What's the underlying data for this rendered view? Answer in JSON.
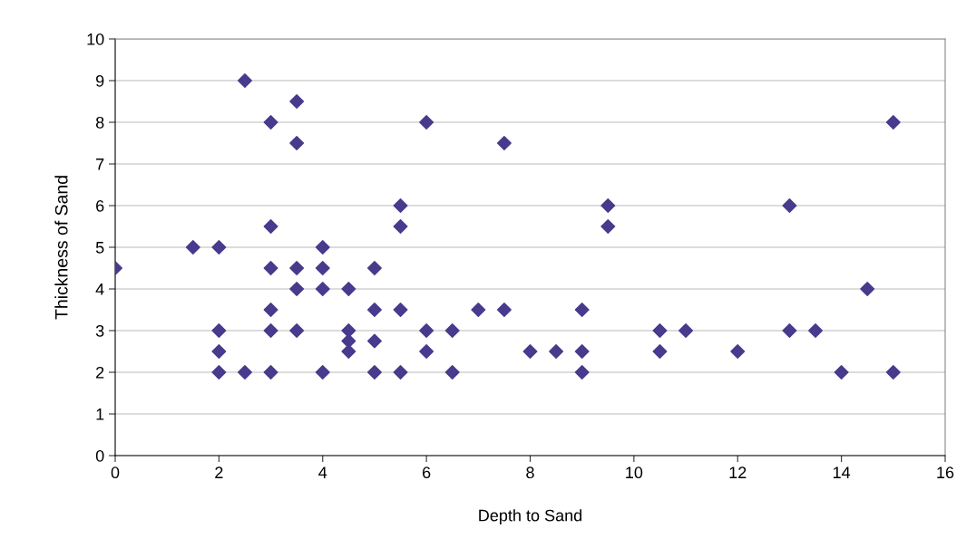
{
  "chart_data": {
    "type": "scatter",
    "xlabel": "Depth to Sand",
    "ylabel": "Thickness of Sand",
    "x": [
      0,
      1.5,
      2,
      2,
      2,
      2,
      2.5,
      2.5,
      3,
      3,
      3,
      3,
      3,
      3,
      3.5,
      3.5,
      3.5,
      3.5,
      3.5,
      4,
      4,
      4,
      4,
      4.5,
      4.5,
      4.5,
      4.5,
      5,
      5,
      5,
      5,
      5.5,
      5.5,
      5.5,
      5.5,
      6,
      6,
      6,
      6.5,
      6.5,
      7,
      7.5,
      7.5,
      8,
      8.5,
      9,
      9,
      9,
      9.5,
      9.5,
      10.5,
      10.5,
      11,
      12,
      13,
      13,
      13.5,
      14,
      14.5,
      15,
      15
    ],
    "series": [
      {
        "color": "#483a8c",
        "values": [
          4.5,
          5,
          5,
          3,
          2.5,
          2,
          9,
          2,
          8,
          5.5,
          4.5,
          3.5,
          3,
          2,
          8.5,
          7.5,
          4.5,
          4,
          3,
          5,
          4.5,
          4,
          2,
          4,
          3,
          2.75,
          2.5,
          4.5,
          3.5,
          2.75,
          2,
          6,
          5.5,
          3.5,
          2,
          8,
          3,
          2.5,
          3,
          2,
          3.5,
          7.5,
          3.5,
          2.5,
          2.5,
          3.5,
          2.5,
          2,
          6,
          5.5,
          3,
          2.5,
          3,
          2.5,
          6,
          3,
          3,
          2,
          4,
          8,
          2
        ]
      }
    ],
    "xlim": [
      0,
      16
    ],
    "xticks": [
      0,
      2,
      4,
      6,
      8,
      10,
      12,
      14,
      16
    ],
    "ylim": [
      0,
      10
    ],
    "yticks": [
      0,
      1,
      2,
      3,
      4,
      5,
      6,
      7,
      8,
      9,
      10
    ],
    "grid": "y",
    "marker": "diamond",
    "legend": false
  }
}
